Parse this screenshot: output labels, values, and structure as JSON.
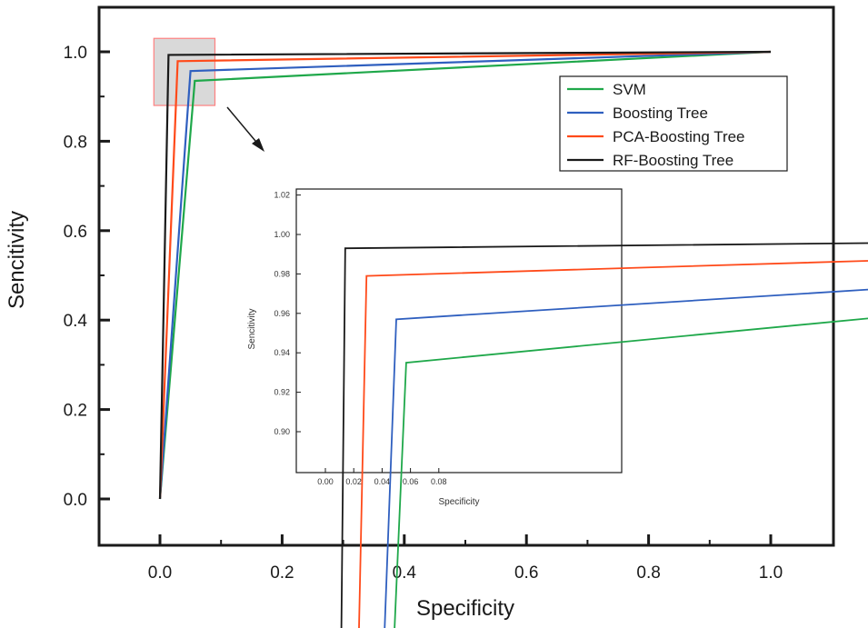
{
  "chart_data": [
    {
      "type": "line",
      "title": "",
      "xlabel": "Specificity",
      "ylabel": "Sencitivity",
      "xlim": [
        -0.1,
        1.1
      ],
      "ylim": [
        -0.1,
        1.1
      ],
      "x_ticks": [
        "0.0",
        "0.2",
        "0.4",
        "0.6",
        "0.8",
        "1.0"
      ],
      "y_ticks": [
        "0.0",
        "0.2",
        "0.4",
        "0.6",
        "0.8",
        "1.0"
      ],
      "legend_position": "upper-right",
      "highlight_region": {
        "x": [
          -0.01,
          0.09
        ],
        "y": [
          0.88,
          1.03
        ]
      },
      "series": [
        {
          "name": "SVM",
          "color": "#1fa84a",
          "x": [
            0.0,
            0.057,
            1.0
          ],
          "y": [
            0.0,
            0.935,
            1.0
          ]
        },
        {
          "name": "Boosting Tree",
          "color": "#2f5fbf",
          "x": [
            0.0,
            0.05,
            1.0
          ],
          "y": [
            0.0,
            0.957,
            1.0
          ]
        },
        {
          "name": "PCA-Boosting Tree",
          "color": "#ff4a1a",
          "x": [
            0.0,
            0.029,
            1.0
          ],
          "y": [
            0.0,
            0.979,
            1.0
          ]
        },
        {
          "name": "RF-Boosting Tree",
          "color": "#1a1a1a",
          "x": [
            0.0,
            0.014,
            1.0
          ],
          "y": [
            0.0,
            0.993,
            1.0
          ]
        }
      ]
    },
    {
      "type": "line",
      "title": "",
      "xlabel": "Specificity",
      "ylabel": "Sencitivity",
      "xlim": [
        -0.01,
        0.09
      ],
      "ylim": [
        0.88,
        1.02
      ],
      "x_ticks": [
        "0.00",
        "0.02",
        "0.04",
        "0.06",
        "0.08"
      ],
      "y_ticks": [
        "0.90",
        "0.92",
        "0.94",
        "0.96",
        "0.98",
        "1.00",
        "1.02"
      ],
      "series_ref": [
        "SVM",
        "Boosting Tree",
        "PCA-Boosting Tree",
        "RF-Boosting Tree"
      ]
    }
  ]
}
